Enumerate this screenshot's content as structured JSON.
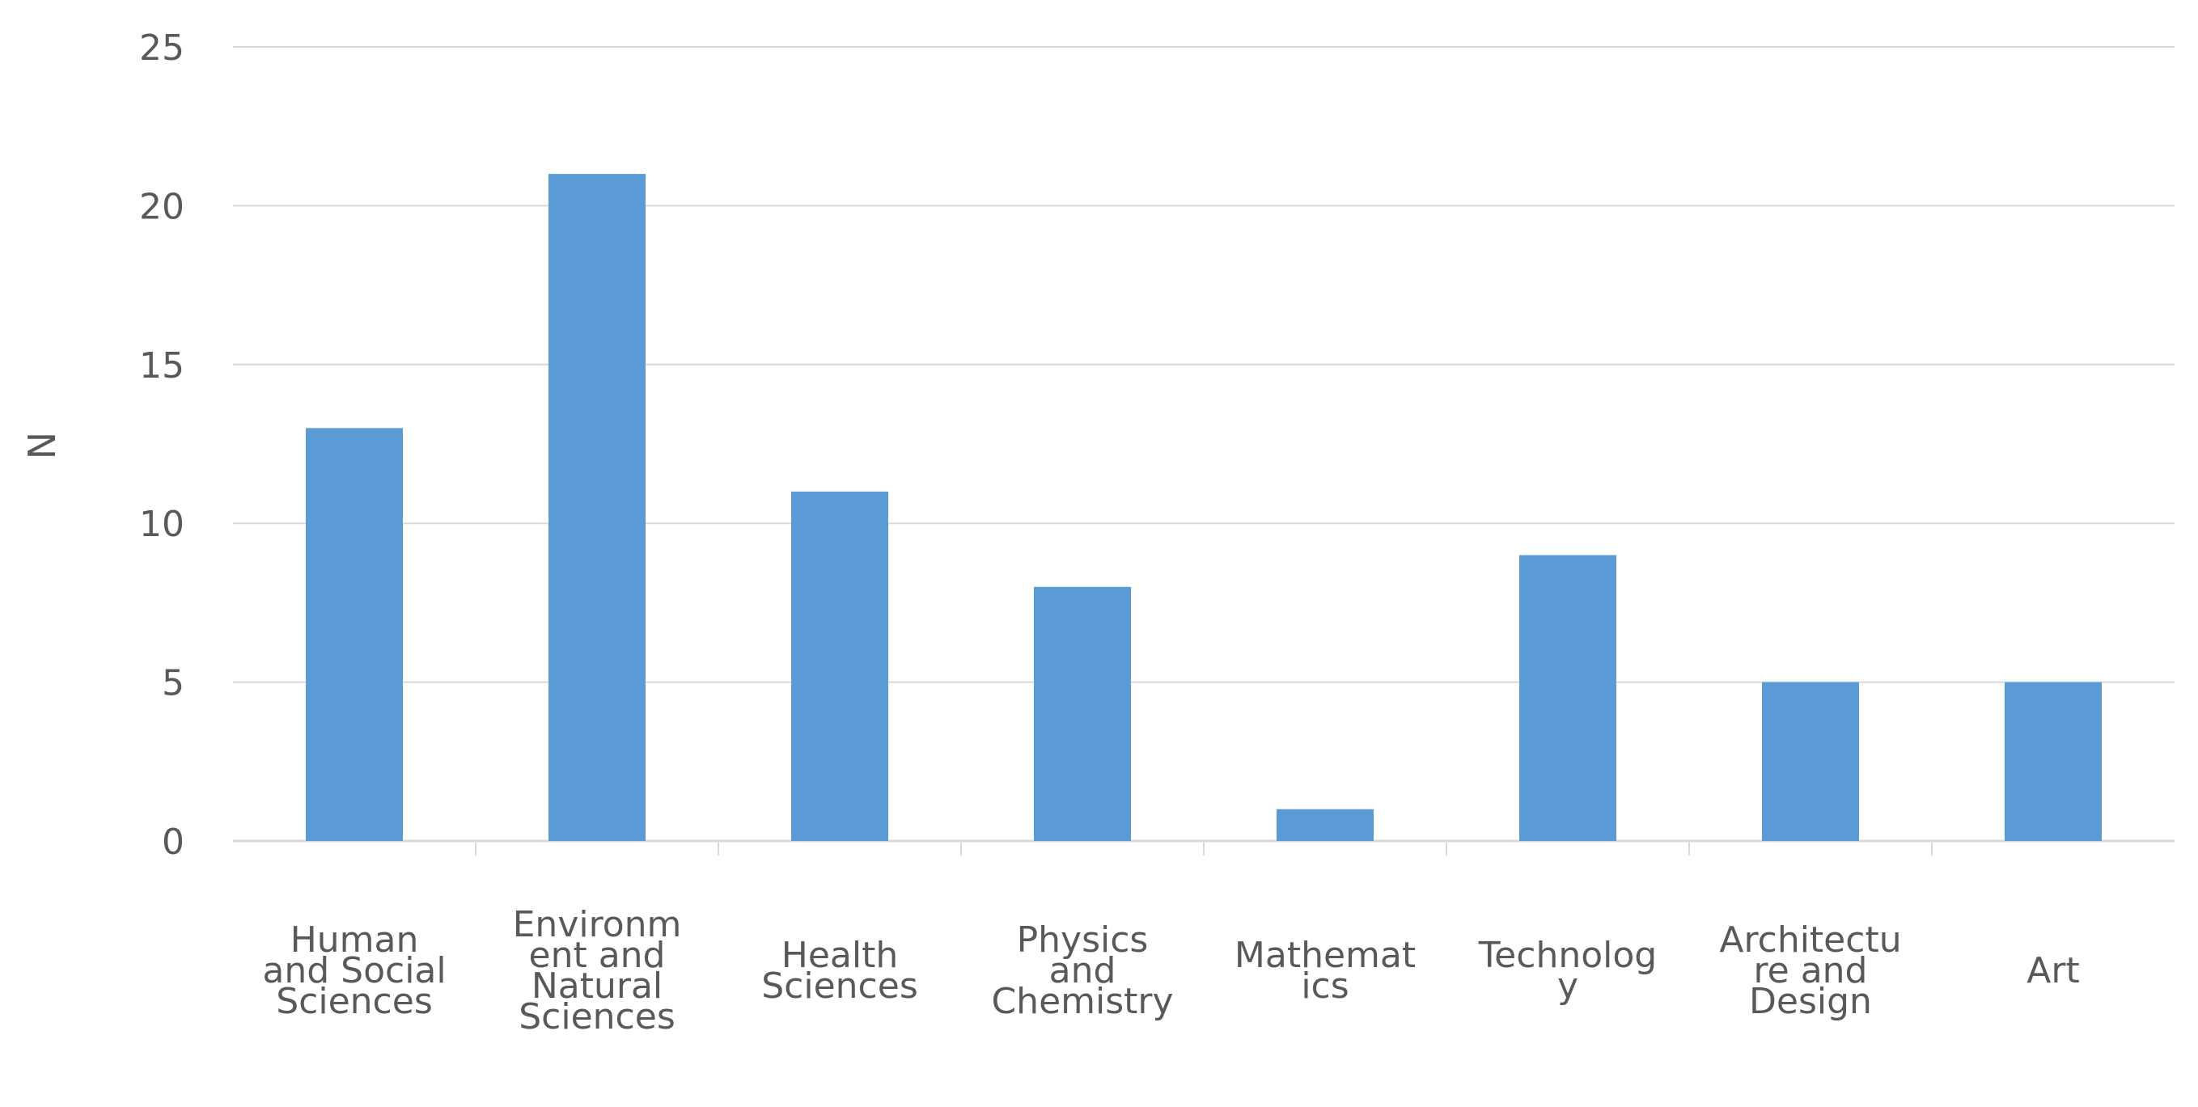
{
  "chart_data": {
    "type": "bar",
    "title": "",
    "xlabel": "",
    "ylabel": "N",
    "ylim": [
      0,
      25
    ],
    "yticks": [
      0,
      5,
      10,
      15,
      20,
      25
    ],
    "grid": true,
    "legend": "none",
    "colors": {
      "bar": "#5B9BD5",
      "grid": "#D9D9D9",
      "axis": "#D9D9D9",
      "text": "#595959"
    },
    "categories": [
      [
        "Human",
        "and Social",
        "Sciences"
      ],
      [
        "Environm",
        "ent and",
        "Natural",
        "Sciences"
      ],
      [
        "Health",
        "Sciences"
      ],
      [
        "Physics",
        "and",
        "Chemistry"
      ],
      [
        "Mathemat",
        "ics"
      ],
      [
        "Technolog",
        "y"
      ],
      [
        "Architectu",
        "re and",
        "Design"
      ],
      [
        "Art"
      ]
    ],
    "values": [
      13,
      21,
      11,
      8,
      1,
      9,
      5,
      5
    ]
  }
}
